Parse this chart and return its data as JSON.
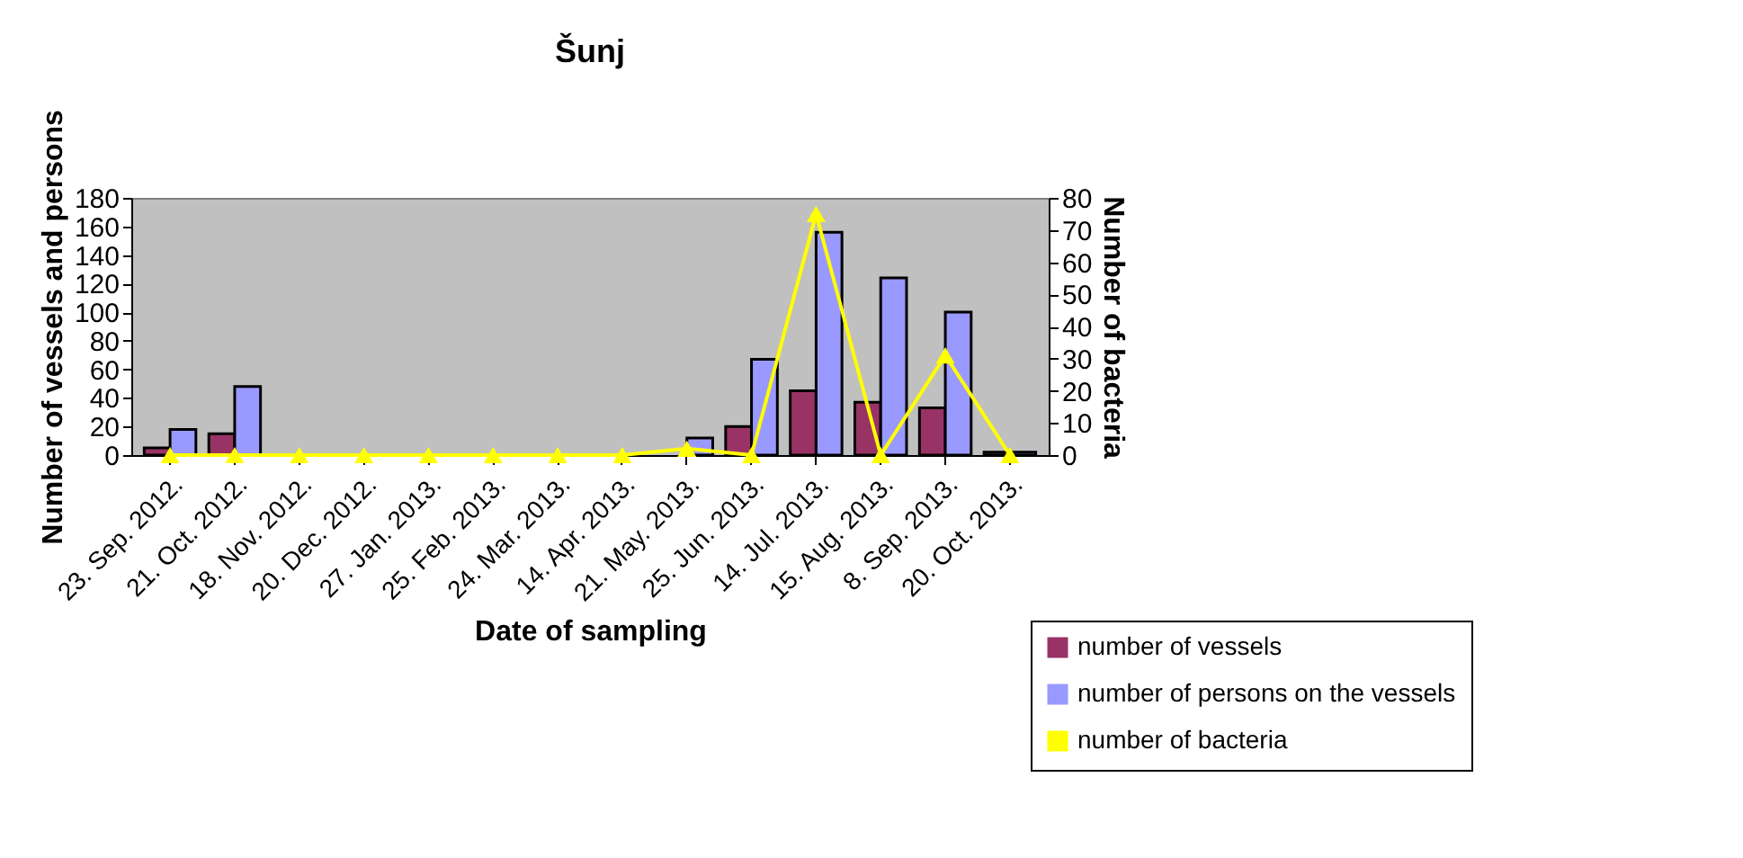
{
  "chart_data": {
    "type": "bar",
    "title": "Šunj",
    "xlabel": "Date of sampling",
    "ylabel": "Number of vessels and persons",
    "y2label": "Number of bacteria",
    "categories": [
      "23. Sep. 2012.",
      "21. Oct. 2012.",
      "18. Nov. 2012.",
      "20. Dec. 2012.",
      "27. Jan. 2013.",
      "25. Feb. 2013.",
      "24. Mar. 2013.",
      "14. Apr. 2013.",
      "21. May. 2013.",
      "25. Jun. 2013.",
      "14. Jul. 2013.",
      "15. Aug. 2013.",
      "8. Sep. 2013.",
      "20. Oct. 2013."
    ],
    "series": [
      {
        "name": "number of vessels",
        "color": "#993366",
        "values": [
          5,
          15,
          0,
          0,
          0,
          0,
          0,
          0,
          null,
          20,
          45,
          37,
          33,
          2
        ]
      },
      {
        "name": "number of persons on the vessels",
        "color": "#9999ff",
        "values": [
          18,
          48,
          0,
          0,
          0,
          0,
          0,
          0,
          12,
          67,
          156,
          124,
          100,
          2
        ]
      },
      {
        "name": "number of bacteria",
        "type": "line",
        "axis": "y2",
        "color": "#ffff00",
        "marker": "triangle",
        "values": [
          0,
          0,
          0,
          0,
          0,
          0,
          0,
          0,
          2,
          0,
          75,
          0,
          31,
          0
        ]
      }
    ],
    "ylim": [
      0,
      180
    ],
    "yticks": [
      0,
      20,
      40,
      60,
      80,
      100,
      120,
      140,
      160,
      180
    ],
    "y2lim": [
      0,
      80
    ],
    "y2ticks": [
      0,
      10,
      20,
      30,
      40,
      50,
      60,
      70,
      80
    ],
    "grid": false,
    "legend": "bottom right"
  }
}
